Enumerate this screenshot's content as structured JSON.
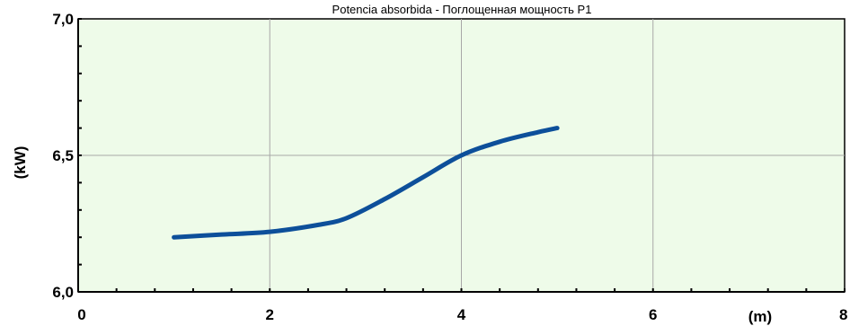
{
  "chart_data": {
    "type": "line",
    "title": "Potencia absorbida - Поглощенная мощность P1",
    "xlabel": "(m)",
    "ylabel": "(kW)",
    "xlim": [
      0,
      8
    ],
    "ylim": [
      6.0,
      7.0
    ],
    "x_ticks": [
      {
        "value": 0,
        "label": "0"
      },
      {
        "value": 2,
        "label": "2"
      },
      {
        "value": 4,
        "label": "4"
      },
      {
        "value": 6,
        "label": "6"
      },
      {
        "value": 8,
        "label": "8"
      }
    ],
    "y_ticks": [
      {
        "value": 6.0,
        "label": "6,0"
      },
      {
        "value": 6.5,
        "label": "6,5"
      },
      {
        "value": 7.0,
        "label": "7,0"
      }
    ],
    "grid": true,
    "plot_background": "#eefbe9",
    "line_color": "#0d4f9a",
    "series": [
      {
        "x": [
          1.0,
          1.5,
          2.0,
          2.5,
          2.8,
          3.2,
          3.6,
          4.0,
          4.4,
          4.8,
          5.0
        ],
        "y": [
          6.2,
          6.21,
          6.22,
          6.245,
          6.27,
          6.34,
          6.42,
          6.5,
          6.55,
          6.585,
          6.6
        ]
      }
    ]
  }
}
